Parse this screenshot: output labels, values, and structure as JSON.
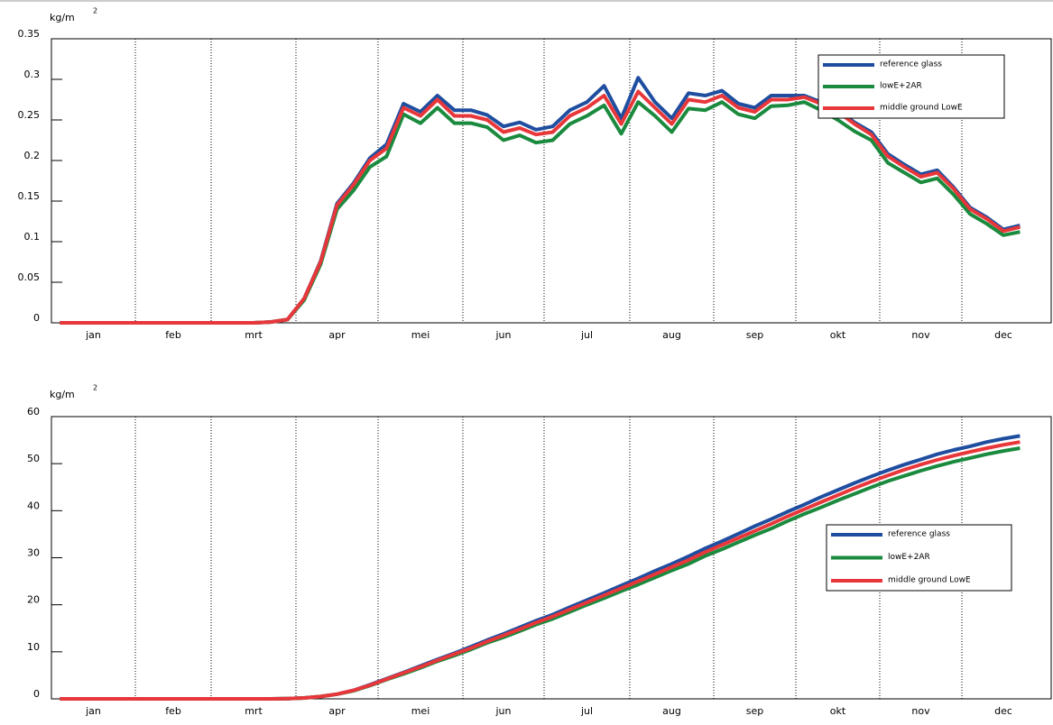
{
  "chart_data": [
    {
      "type": "line",
      "y_unit": "kg/m",
      "y_unit_exp": "2",
      "categories": [
        null,
        null,
        "jan",
        null,
        null,
        null,
        null,
        "feb",
        null,
        null,
        null,
        null,
        "mrt",
        null,
        null,
        null,
        null,
        "apr",
        null,
        null,
        null,
        null,
        "mei",
        null,
        null,
        null,
        null,
        "jun",
        null,
        null,
        null,
        null,
        "jul",
        null,
        null,
        null,
        null,
        "aug",
        null,
        null,
        null,
        null,
        "sep",
        null,
        null,
        null,
        null,
        "okt",
        null,
        null,
        null,
        null,
        "nov",
        null,
        null,
        null,
        null,
        "dec",
        null,
        null
      ],
      "ylim": [
        0,
        0.35
      ],
      "yticks": [
        0,
        0.05,
        0.1,
        0.15,
        0.2,
        0.25,
        0.3,
        0.35
      ],
      "series": [
        {
          "name": "reference glass",
          "color": "#1f4ea0",
          "values": [
            0,
            0,
            0,
            0,
            0,
            0,
            0,
            0,
            0,
            0,
            0,
            0,
            0,
            0.001,
            0.004,
            0.03,
            0.076,
            0.147,
            0.172,
            0.203,
            0.22,
            0.27,
            0.26,
            0.28,
            0.262,
            0.262,
            0.256,
            0.242,
            0.247,
            0.238,
            0.242,
            0.262,
            0.272,
            0.292,
            0.252,
            0.302,
            0.272,
            0.252,
            0.283,
            0.28,
            0.286,
            0.27,
            0.265,
            0.28,
            0.28,
            0.28,
            0.272,
            0.262,
            0.247,
            0.235,
            0.208,
            0.195,
            0.183,
            0.188,
            0.167,
            0.142,
            0.13,
            0.115,
            0.12,
            null
          ]
        },
        {
          "name": "lowE+2AR",
          "color": "#1a8a3e",
          "values": [
            0,
            0,
            0,
            0,
            0,
            0,
            0,
            0,
            0,
            0,
            0,
            0,
            0,
            0.001,
            0.004,
            0.028,
            0.072,
            0.14,
            0.163,
            0.192,
            0.205,
            0.257,
            0.246,
            0.265,
            0.246,
            0.246,
            0.241,
            0.225,
            0.231,
            0.222,
            0.225,
            0.245,
            0.255,
            0.268,
            0.233,
            0.272,
            0.255,
            0.235,
            0.264,
            0.262,
            0.272,
            0.257,
            0.252,
            0.267,
            0.268,
            0.272,
            0.262,
            0.25,
            0.236,
            0.225,
            0.197,
            0.185,
            0.173,
            0.178,
            0.158,
            0.134,
            0.122,
            0.108,
            0.112,
            null
          ]
        },
        {
          "name": "middle ground LowE",
          "color": "#e8373a",
          "values": [
            0,
            0,
            0,
            0,
            0,
            0,
            0,
            0,
            0,
            0,
            0,
            0,
            0,
            0.001,
            0.004,
            0.03,
            0.075,
            0.145,
            0.17,
            0.2,
            0.215,
            0.265,
            0.255,
            0.275,
            0.255,
            0.255,
            0.25,
            0.235,
            0.24,
            0.232,
            0.235,
            0.255,
            0.265,
            0.28,
            0.245,
            0.285,
            0.265,
            0.245,
            0.275,
            0.272,
            0.28,
            0.265,
            0.26,
            0.275,
            0.275,
            0.278,
            0.27,
            0.26,
            0.245,
            0.232,
            0.205,
            0.192,
            0.18,
            0.185,
            0.165,
            0.14,
            0.128,
            0.113,
            0.118,
            null
          ]
        }
      ]
    },
    {
      "type": "line",
      "y_unit": "kg/m",
      "y_unit_exp": "2",
      "categories": [
        null,
        null,
        "jan",
        null,
        null,
        null,
        null,
        "feb",
        null,
        null,
        null,
        null,
        "mrt",
        null,
        null,
        null,
        null,
        "apr",
        null,
        null,
        null,
        null,
        "mei",
        null,
        null,
        null,
        null,
        "jun",
        null,
        null,
        null,
        null,
        "jul",
        null,
        null,
        null,
        null,
        "aug",
        null,
        null,
        null,
        null,
        "sep",
        null,
        null,
        null,
        null,
        "okt",
        null,
        null,
        null,
        null,
        "nov",
        null,
        null,
        null,
        null,
        "dec",
        null,
        null
      ],
      "ylim": [
        0,
        60
      ],
      "yticks": [
        0,
        10,
        20,
        30,
        40,
        50,
        60
      ],
      "series": [
        {
          "name": "reference glass",
          "color": "#1f4ea0",
          "values": [
            0,
            0,
            0,
            0,
            0,
            0,
            0,
            0,
            0,
            0,
            0,
            0,
            0,
            0,
            0.05,
            0.2,
            0.5,
            1,
            1.8,
            3,
            4.3,
            5.6,
            7,
            8.4,
            9.7,
            11.1,
            12.5,
            13.8,
            15.2,
            16.6,
            17.9,
            19.5,
            21,
            22.5,
            24.1,
            25.6,
            27.2,
            28.7,
            30.3,
            32,
            33.5,
            35.1,
            36.7,
            38.2,
            39.8,
            41.3,
            42.9,
            44.4,
            45.9,
            47.3,
            48.6,
            49.8,
            50.9,
            52,
            52.9,
            53.7,
            54.6,
            55.3,
            55.9,
            null
          ]
        },
        {
          "name": "lowE+2AR",
          "color": "#1a8a3e",
          "values": [
            0,
            0,
            0,
            0,
            0,
            0,
            0,
            0,
            0,
            0,
            0,
            0,
            0,
            0,
            0.05,
            0.2,
            0.5,
            1,
            1.7,
            2.8,
            4.1,
            5.3,
            6.6,
            8,
            9.2,
            10.5,
            11.9,
            13.1,
            14.4,
            15.8,
            17,
            18.5,
            20,
            21.4,
            22.9,
            24.3,
            25.8,
            27.3,
            28.7,
            30.4,
            31.8,
            33.3,
            34.8,
            36.2,
            37.8,
            39.3,
            40.7,
            42.2,
            43.6,
            45,
            46.3,
            47.4,
            48.5,
            49.5,
            50.4,
            51.2,
            52,
            52.7,
            53.3,
            null
          ]
        },
        {
          "name": "middle ground LowE",
          "color": "#e8373a",
          "values": [
            0,
            0,
            0,
            0,
            0,
            0,
            0,
            0,
            0,
            0,
            0,
            0,
            0,
            0,
            0.05,
            0.2,
            0.5,
            1,
            1.8,
            2.9,
            4.2,
            5.5,
            6.8,
            8.2,
            9.5,
            10.8,
            12.2,
            13.5,
            14.8,
            16.2,
            17.5,
            19,
            20.5,
            22,
            23.5,
            25,
            26.5,
            28,
            29.5,
            31.2,
            32.7,
            34.2,
            35.7,
            37.2,
            38.8,
            40.3,
            41.8,
            43.3,
            44.8,
            46.2,
            47.5,
            48.7,
            49.8,
            50.8,
            51.7,
            52.5,
            53.3,
            54,
            54.6,
            null
          ]
        }
      ]
    }
  ]
}
